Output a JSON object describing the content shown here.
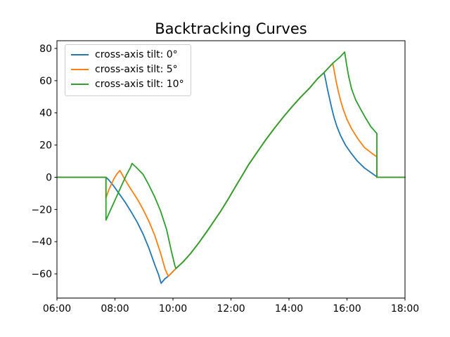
{
  "figure": {
    "background": "#ffffff"
  },
  "chart_data": {
    "type": "line",
    "title": "Backtracking Curves",
    "xlabel": "",
    "ylabel": "",
    "grid": false,
    "legend_position": "upper left",
    "xlim": [
      6,
      18
    ],
    "ylim": [
      -75.0,
      84.8
    ],
    "x_ticks": [
      {
        "t": 6,
        "label": "06:00"
      },
      {
        "t": 8,
        "label": "08:00"
      },
      {
        "t": 10,
        "label": "10:00"
      },
      {
        "t": 12,
        "label": "12:00"
      },
      {
        "t": 14,
        "label": "14:00"
      },
      {
        "t": 16,
        "label": "16:00"
      },
      {
        "t": 18,
        "label": "18:00"
      }
    ],
    "y_ticks": [
      {
        "v": 80,
        "label": "80"
      },
      {
        "v": 60,
        "label": "60"
      },
      {
        "v": 40,
        "label": "40"
      },
      {
        "v": 20,
        "label": "20"
      },
      {
        "v": 0,
        "label": "0"
      },
      {
        "v": -20,
        "label": "−20"
      },
      {
        "v": -40,
        "label": "−40"
      },
      {
        "v": -60,
        "label": "−60"
      }
    ],
    "series": [
      {
        "name": "cross-axis tilt: 0°",
        "color": "#1f77b4",
        "points": [
          [
            6.0,
            0
          ],
          [
            7.69,
            0
          ],
          [
            7.78,
            -1.5
          ],
          [
            7.96,
            -5.5
          ],
          [
            8.16,
            -10.6
          ],
          [
            8.36,
            -15.7
          ],
          [
            8.56,
            -21.5
          ],
          [
            8.77,
            -28.0
          ],
          [
            8.97,
            -35.3
          ],
          [
            9.17,
            -44.0
          ],
          [
            9.37,
            -54.2
          ],
          [
            9.5,
            -60.3
          ],
          [
            9.59,
            -65.8
          ],
          [
            9.73,
            -62.9
          ],
          [
            9.84,
            -61.5
          ],
          [
            10.1,
            -56.7
          ],
          [
            10.34,
            -52.7
          ],
          [
            10.6,
            -47.5
          ],
          [
            10.9,
            -40.5
          ],
          [
            11.2,
            -32.9
          ],
          [
            11.4,
            -27.6
          ],
          [
            11.63,
            -21.5
          ],
          [
            11.9,
            -13.7
          ],
          [
            12.12,
            -6.9
          ],
          [
            12.4,
            1.5
          ],
          [
            12.6,
            7.6
          ],
          [
            12.93,
            16.3
          ],
          [
            13.2,
            23.3
          ],
          [
            13.5,
            30.5
          ],
          [
            13.8,
            37.3
          ],
          [
            14.1,
            43.7
          ],
          [
            14.4,
            49.7
          ],
          [
            14.7,
            55.2
          ],
          [
            15.0,
            61.5
          ],
          [
            15.21,
            65.0
          ],
          [
            15.27,
            60.0
          ],
          [
            15.33,
            54.5
          ],
          [
            15.4,
            48.8
          ],
          [
            15.47,
            43.2
          ],
          [
            15.55,
            37.4
          ],
          [
            15.65,
            31.6
          ],
          [
            15.78,
            25.8
          ],
          [
            15.95,
            19.9
          ],
          [
            16.14,
            15.0
          ],
          [
            16.35,
            10.2
          ],
          [
            16.6,
            5.8
          ],
          [
            16.85,
            2.6
          ],
          [
            17.02,
            0.4
          ],
          [
            17.03,
            0
          ],
          [
            18.0,
            0
          ]
        ]
      },
      {
        "name": "cross-axis tilt: 5°",
        "color": "#ff7f0e",
        "points": [
          [
            6.0,
            0
          ],
          [
            7.69,
            0
          ],
          [
            7.69,
            -12.8
          ],
          [
            7.79,
            -7.7
          ],
          [
            7.96,
            -1.1
          ],
          [
            8.06,
            1.9
          ],
          [
            8.17,
            4.2
          ],
          [
            8.36,
            -1.9
          ],
          [
            8.56,
            -7.7
          ],
          [
            8.77,
            -13.5
          ],
          [
            8.97,
            -20.0
          ],
          [
            9.17,
            -27.3
          ],
          [
            9.37,
            -36.0
          ],
          [
            9.57,
            -46.9
          ],
          [
            9.73,
            -57.1
          ],
          [
            9.84,
            -61.5
          ],
          [
            10.1,
            -56.7
          ],
          [
            10.34,
            -52.7
          ],
          [
            10.6,
            -47.5
          ],
          [
            10.9,
            -40.5
          ],
          [
            11.2,
            -32.9
          ],
          [
            11.4,
            -27.6
          ],
          [
            11.63,
            -21.5
          ],
          [
            11.9,
            -13.7
          ],
          [
            12.12,
            -6.9
          ],
          [
            12.4,
            1.5
          ],
          [
            12.6,
            7.6
          ],
          [
            12.93,
            16.3
          ],
          [
            13.2,
            23.3
          ],
          [
            13.5,
            30.5
          ],
          [
            13.8,
            37.3
          ],
          [
            14.1,
            43.7
          ],
          [
            14.4,
            49.7
          ],
          [
            14.7,
            55.2
          ],
          [
            15.0,
            61.5
          ],
          [
            15.21,
            65.0
          ],
          [
            15.51,
            70.8
          ],
          [
            15.57,
            65.0
          ],
          [
            15.63,
            59.2
          ],
          [
            15.7,
            53.4
          ],
          [
            15.78,
            47.6
          ],
          [
            15.88,
            41.7
          ],
          [
            16.0,
            35.9
          ],
          [
            16.16,
            30.1
          ],
          [
            16.36,
            24.3
          ],
          [
            16.6,
            18.5
          ],
          [
            16.85,
            15.0
          ],
          [
            17.03,
            12.7
          ],
          [
            17.03,
            0
          ],
          [
            18.0,
            0
          ]
        ]
      },
      {
        "name": "cross-axis tilt: 10°",
        "color": "#2ca02c",
        "points": [
          [
            6.0,
            0
          ],
          [
            7.69,
            0
          ],
          [
            7.69,
            -26.6
          ],
          [
            7.96,
            -15.8
          ],
          [
            8.2,
            -6.2
          ],
          [
            8.4,
            1.6
          ],
          [
            8.53,
            5.9
          ],
          [
            8.59,
            8.6
          ],
          [
            8.77,
            5.5
          ],
          [
            8.97,
            1.8
          ],
          [
            9.17,
            -4.8
          ],
          [
            9.37,
            -12.2
          ],
          [
            9.57,
            -20.8
          ],
          [
            9.78,
            -32.4
          ],
          [
            9.94,
            -45.5
          ],
          [
            10.06,
            -54.5
          ],
          [
            10.1,
            -56.7
          ],
          [
            10.34,
            -52.7
          ],
          [
            10.6,
            -47.5
          ],
          [
            10.9,
            -40.5
          ],
          [
            11.2,
            -32.9
          ],
          [
            11.4,
            -27.6
          ],
          [
            11.63,
            -21.5
          ],
          [
            11.9,
            -13.7
          ],
          [
            12.12,
            -6.9
          ],
          [
            12.4,
            1.5
          ],
          [
            12.6,
            7.6
          ],
          [
            12.93,
            16.3
          ],
          [
            13.2,
            23.3
          ],
          [
            13.5,
            30.5
          ],
          [
            13.8,
            37.3
          ],
          [
            14.1,
            43.7
          ],
          [
            14.4,
            49.7
          ],
          [
            14.7,
            55.2
          ],
          [
            15.0,
            61.5
          ],
          [
            15.21,
            65.0
          ],
          [
            15.51,
            70.8
          ],
          [
            15.75,
            74.5
          ],
          [
            15.92,
            77.8
          ],
          [
            15.99,
            69.5
          ],
          [
            16.06,
            62.5
          ],
          [
            16.16,
            54.8
          ],
          [
            16.3,
            48.0
          ],
          [
            16.48,
            42.0
          ],
          [
            16.65,
            36.5
          ],
          [
            16.82,
            31.5
          ],
          [
            16.95,
            28.8
          ],
          [
            17.03,
            27.2
          ],
          [
            17.03,
            0
          ],
          [
            18.0,
            0
          ]
        ]
      }
    ]
  }
}
